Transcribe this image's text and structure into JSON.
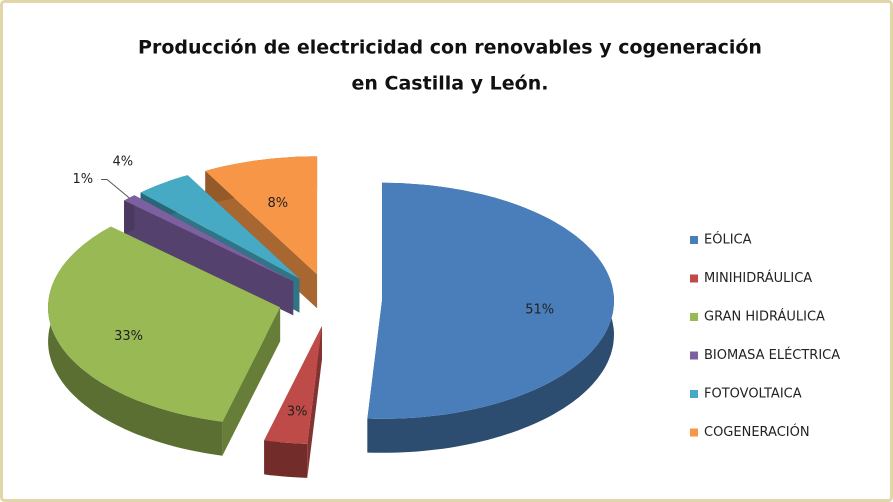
{
  "chart_data": {
    "type": "pie",
    "title": [
      "Producción de electricidad con renovables y cogeneración",
      "en Castilla y León."
    ],
    "categories": [
      "EÓLICA",
      "MINIHIDRÁULICA",
      "GRAN HIDRÁULICA",
      "BIOMASA ELÉCTRICA",
      "FOTOVOLTAICA",
      "COGENERACIÓN"
    ],
    "values": [
      51,
      3,
      33,
      1,
      4,
      8
    ],
    "value_labels": [
      "51%",
      "3%",
      "33%",
      "1%",
      "4%",
      "8%"
    ],
    "colors": [
      "#4a7ebb",
      "#be4b48",
      "#98b954",
      "#7d60a0",
      "#46aac5",
      "#f79646"
    ],
    "legend": "right"
  }
}
